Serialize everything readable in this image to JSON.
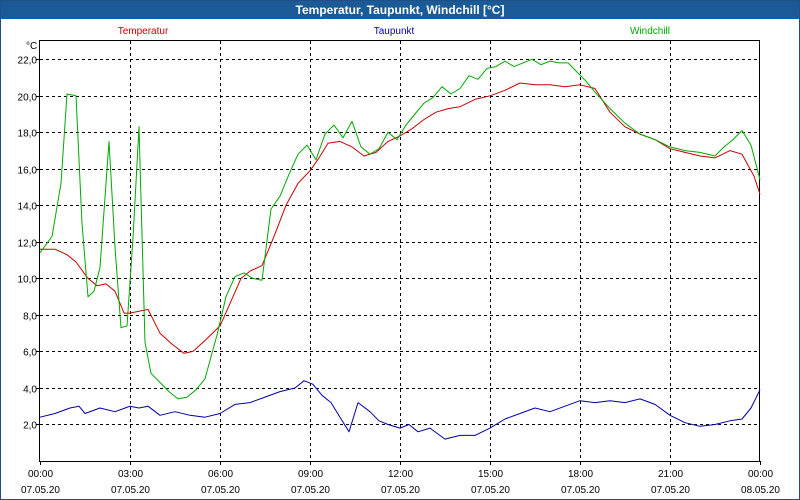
{
  "window": {
    "title": "Temperatur, Taupunkt, Windchill [°C]"
  },
  "chart_data": {
    "type": "line",
    "title": "Temperatur, Taupunkt, Windchill [°C]",
    "ylabel": "°C",
    "xlabel": "",
    "ylim": [
      0,
      23
    ],
    "xlim": [
      0,
      24
    ],
    "grid": true,
    "yticks": [
      {
        "value": 2,
        "label": "2,0"
      },
      {
        "value": 4,
        "label": "4,0"
      },
      {
        "value": 6,
        "label": "6,0"
      },
      {
        "value": 8,
        "label": "8,0"
      },
      {
        "value": 10,
        "label": "10,0"
      },
      {
        "value": 12,
        "label": "12,0"
      },
      {
        "value": 14,
        "label": "14,0"
      },
      {
        "value": 16,
        "label": "16,0"
      },
      {
        "value": 18,
        "label": "18,0"
      },
      {
        "value": 20,
        "label": "20,0"
      },
      {
        "value": 22,
        "label": "22,0"
      }
    ],
    "xticks": [
      {
        "value": 0,
        "time": "00:00",
        "date": "07.05.20"
      },
      {
        "value": 3,
        "time": "03:00",
        "date": "07.05.20"
      },
      {
        "value": 6,
        "time": "06:00",
        "date": "07.05.20"
      },
      {
        "value": 9,
        "time": "09:00",
        "date": "07.05.20"
      },
      {
        "value": 12,
        "time": "12:00",
        "date": "07.05.20"
      },
      {
        "value": 15,
        "time": "15:00",
        "date": "07.05.20"
      },
      {
        "value": 18,
        "time": "18:00",
        "date": "07.05.20"
      },
      {
        "value": 21,
        "time": "21:00",
        "date": "07.05.20"
      },
      {
        "value": 24,
        "time": "00:00",
        "date": "08.05.20"
      }
    ],
    "legend": [
      {
        "name": "Temperatur",
        "color": "#cc0000"
      },
      {
        "name": "Taupunkt",
        "color": "#0000aa"
      },
      {
        "name": "Windchill",
        "color": "#00aa00"
      }
    ],
    "series": [
      {
        "name": "Temperatur",
        "color": "#cc0000",
        "x": [
          0,
          0.5,
          0.9,
          1.2,
          1.6,
          1.9,
          2.2,
          2.5,
          2.8,
          3.0,
          3.3,
          3.6,
          4.0,
          4.4,
          4.8,
          5.1,
          5.5,
          6.0,
          6.3,
          6.7,
          7.0,
          7.4,
          7.8,
          8.2,
          8.6,
          9.0,
          9.3,
          9.6,
          10.0,
          10.4,
          10.8,
          11.2,
          11.6,
          12.0,
          12.4,
          12.8,
          13.2,
          13.6,
          14.0,
          14.5,
          15.0,
          15.5,
          16.0,
          16.5,
          17.0,
          17.5,
          18.0,
          18.5,
          19.0,
          19.5,
          20.0,
          20.5,
          21.0,
          21.5,
          22.0,
          22.5,
          23.0,
          23.4,
          23.8,
          24.0
        ],
        "values": [
          11.6,
          11.6,
          11.3,
          10.9,
          10.0,
          9.6,
          9.7,
          9.3,
          8.1,
          8.1,
          8.2,
          8.3,
          7.0,
          6.4,
          5.9,
          6.0,
          6.6,
          7.4,
          8.5,
          10.0,
          10.4,
          10.7,
          12.3,
          14.0,
          15.2,
          15.9,
          16.6,
          17.4,
          17.5,
          17.2,
          16.7,
          16.9,
          17.5,
          17.8,
          18.2,
          18.7,
          19.1,
          19.3,
          19.4,
          19.8,
          20.0,
          20.3,
          20.7,
          20.6,
          20.6,
          20.5,
          20.6,
          20.4,
          19.1,
          18.3,
          17.9,
          17.6,
          17.1,
          16.9,
          16.7,
          16.6,
          17.0,
          16.8,
          15.6,
          14.6
        ]
      },
      {
        "name": "Taupunkt",
        "color": "#0000aa",
        "x": [
          0,
          0.5,
          1.0,
          1.3,
          1.5,
          2.0,
          2.5,
          3.0,
          3.3,
          3.6,
          4.0,
          4.5,
          5.0,
          5.5,
          6.0,
          6.5,
          7.0,
          7.5,
          8.0,
          8.5,
          8.8,
          9.1,
          9.4,
          9.7,
          10.0,
          10.3,
          10.6,
          11.0,
          11.3,
          11.6,
          12.0,
          12.3,
          12.6,
          13.0,
          13.5,
          14.0,
          14.5,
          15.0,
          15.5,
          16.0,
          16.5,
          17.0,
          17.5,
          18.0,
          18.5,
          19.0,
          19.5,
          20.0,
          20.5,
          21.0,
          21.5,
          22.0,
          22.5,
          23.0,
          23.4,
          23.7,
          24.0
        ],
        "values": [
          2.4,
          2.6,
          2.9,
          3.0,
          2.6,
          2.9,
          2.7,
          3.0,
          2.9,
          3.0,
          2.5,
          2.7,
          2.5,
          2.4,
          2.6,
          3.1,
          3.2,
          3.5,
          3.8,
          4.0,
          4.4,
          4.2,
          3.6,
          3.2,
          2.4,
          1.6,
          3.2,
          2.7,
          2.2,
          2.0,
          1.8,
          2.0,
          1.6,
          1.8,
          1.2,
          1.4,
          1.4,
          1.8,
          2.3,
          2.6,
          2.9,
          2.7,
          3.0,
          3.3,
          3.2,
          3.3,
          3.2,
          3.4,
          3.1,
          2.5,
          2.1,
          1.9,
          2.0,
          2.2,
          2.3,
          2.9,
          3.9
        ]
      },
      {
        "name": "Windchill",
        "color": "#00aa00",
        "x": [
          0,
          0.4,
          0.7,
          0.9,
          1.2,
          1.4,
          1.6,
          1.8,
          2.0,
          2.3,
          2.5,
          2.7,
          2.9,
          3.1,
          3.3,
          3.5,
          3.7,
          4.0,
          4.3,
          4.6,
          4.9,
          5.2,
          5.5,
          5.9,
          6.2,
          6.5,
          6.8,
          7.1,
          7.4,
          7.7,
          8.0,
          8.3,
          8.6,
          8.9,
          9.2,
          9.5,
          9.8,
          10.1,
          10.4,
          10.7,
          11.0,
          11.3,
          11.6,
          11.9,
          12.2,
          12.5,
          12.8,
          13.1,
          13.4,
          13.7,
          14.0,
          14.3,
          14.6,
          14.9,
          15.2,
          15.5,
          15.8,
          16.1,
          16.4,
          16.7,
          17.0,
          17.3,
          17.6,
          17.9,
          18.2,
          18.5,
          19.0,
          19.5,
          20.0,
          20.5,
          21.0,
          21.5,
          22.0,
          22.5,
          22.8,
          23.1,
          23.4,
          23.7,
          24.0
        ],
        "values": [
          11.4,
          12.3,
          15.2,
          20.1,
          20.0,
          13.0,
          9.0,
          9.3,
          10.6,
          17.5,
          11.7,
          7.3,
          7.4,
          12.2,
          18.3,
          6.5,
          4.8,
          4.3,
          3.8,
          3.4,
          3.5,
          3.9,
          4.5,
          6.9,
          9.0,
          10.1,
          10.3,
          10.0,
          9.9,
          13.8,
          14.5,
          15.7,
          16.8,
          17.3,
          16.5,
          17.9,
          18.4,
          17.7,
          18.6,
          17.2,
          16.8,
          17.1,
          18.0,
          17.6,
          18.4,
          19.0,
          19.6,
          19.9,
          20.5,
          20.1,
          20.4,
          21.1,
          20.9,
          21.5,
          21.6,
          21.9,
          21.6,
          21.8,
          22.0,
          21.7,
          21.9,
          21.8,
          21.8,
          21.3,
          20.8,
          20.2,
          19.3,
          18.5,
          17.9,
          17.6,
          17.2,
          17.0,
          16.9,
          16.7,
          17.2,
          17.6,
          18.1,
          17.3,
          15.4
        ]
      }
    ]
  }
}
